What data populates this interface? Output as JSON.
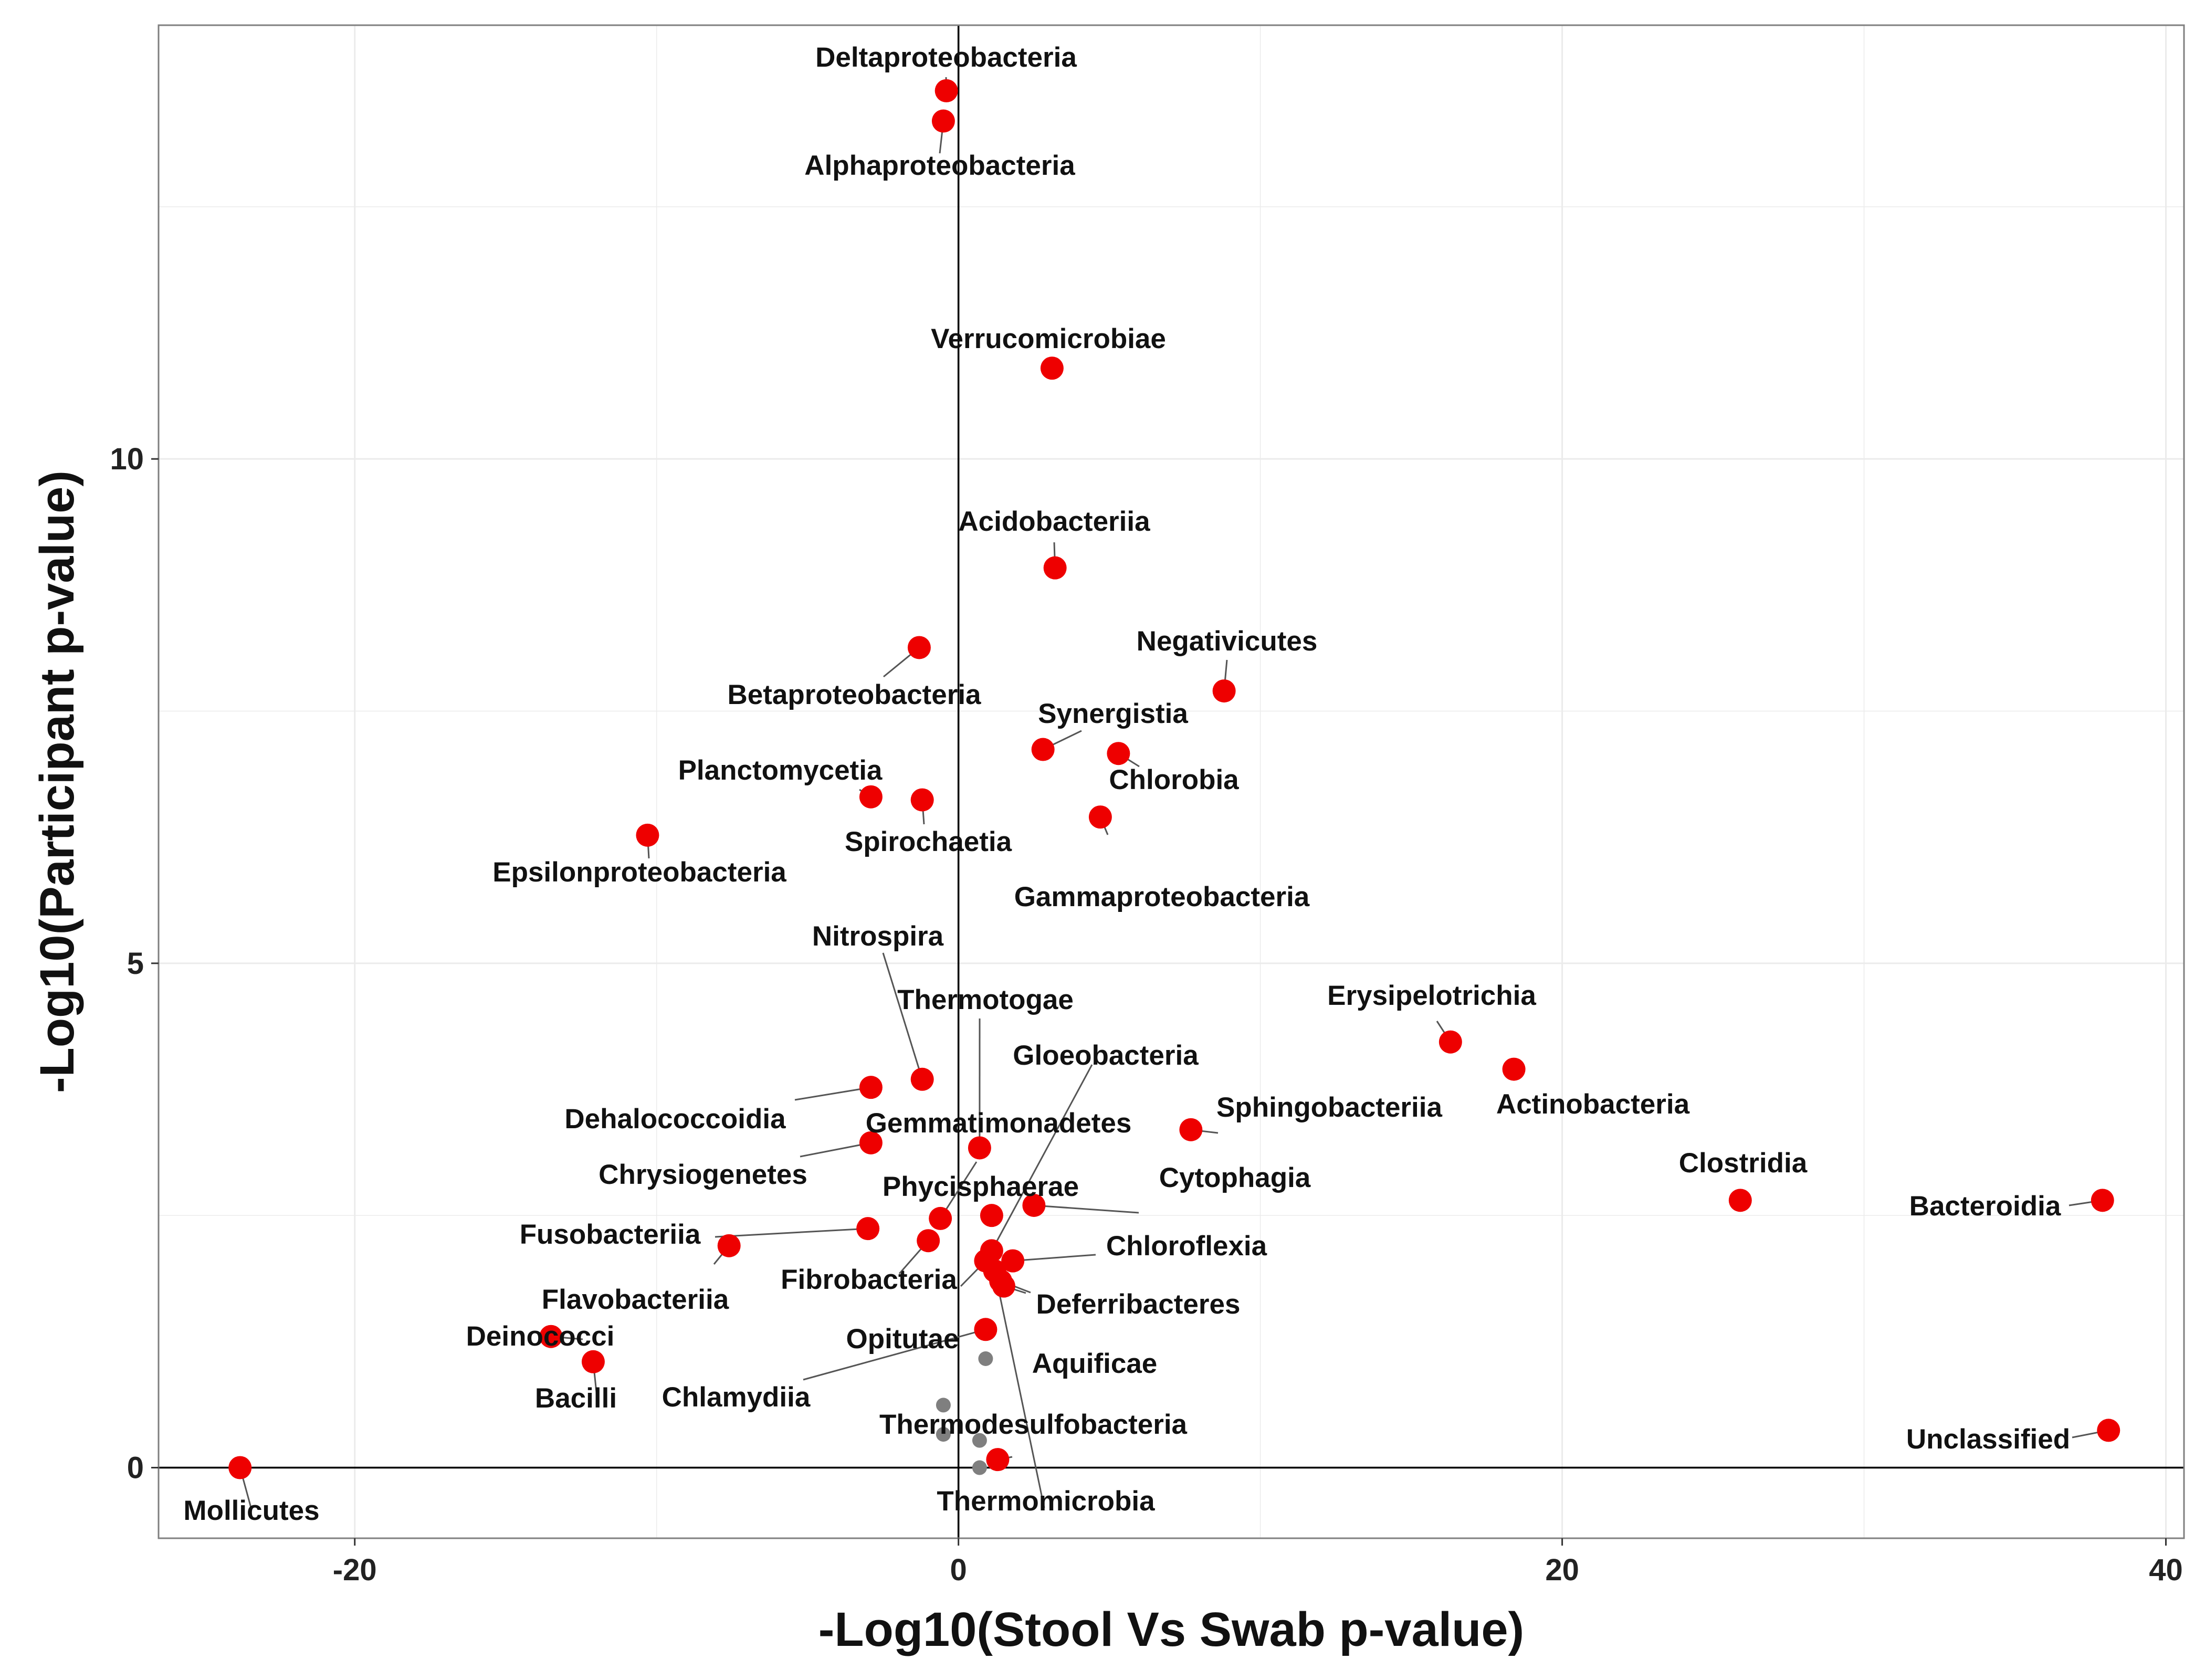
{
  "chart_data": {
    "type": "scatter",
    "xlabel": "-Log10(Stool Vs Swab p-value)",
    "ylabel": "-Log10(Participant p-value)",
    "xlim": [
      -26.5,
      40.6
    ],
    "ylim": [
      -0.7,
      14.3
    ],
    "x_ticks": [
      -20,
      0,
      20,
      40
    ],
    "y_ticks": [
      0,
      5,
      10
    ],
    "grid": true,
    "colors": {
      "significant": "#ee0000",
      "other": "#7f7f7f",
      "axis_lines": "#000000",
      "grid": "#ebebeb",
      "panel_border": "#7f7f7f"
    },
    "points": [
      {
        "name": "Deltaproteobacteria",
        "x": -0.4,
        "y": 13.65,
        "sig": true
      },
      {
        "name": "Alphaproteobacteria",
        "x": -0.5,
        "y": 13.35,
        "sig": true
      },
      {
        "name": "Verrucomicrobiae",
        "x": 3.1,
        "y": 10.9,
        "sig": true
      },
      {
        "name": "Acidobacteriia",
        "x": 3.2,
        "y": 8.92,
        "sig": true
      },
      {
        "name": "Betaproteobacteria",
        "x": -1.3,
        "y": 8.13,
        "sig": true
      },
      {
        "name": "Negativicutes",
        "x": 8.8,
        "y": 7.7,
        "sig": true
      },
      {
        "name": "Synergistia",
        "x": 2.8,
        "y": 7.12,
        "sig": true
      },
      {
        "name": "Chlorobia",
        "x": 5.3,
        "y": 7.08,
        "sig": true
      },
      {
        "name": "Planctomycetia",
        "x": -2.9,
        "y": 6.65,
        "sig": true
      },
      {
        "name": "Spirochaetia",
        "x": -1.2,
        "y": 6.62,
        "sig": true
      },
      {
        "name": "Gammaproteobacteria",
        "x": 4.7,
        "y": 6.45,
        "sig": true
      },
      {
        "name": "Epsilonproteobacteria",
        "x": -10.3,
        "y": 6.27,
        "sig": true
      },
      {
        "name": "Nitrospira",
        "x": -1.2,
        "y": 3.85,
        "sig": true
      },
      {
        "name": "Dehalococcoidia",
        "x": -2.9,
        "y": 3.77,
        "sig": true
      },
      {
        "name": "Chrysiogenetes",
        "x": -2.9,
        "y": 3.22,
        "sig": true
      },
      {
        "name": "Thermotogae",
        "x": 0.7,
        "y": 3.17,
        "sig": true
      },
      {
        "name": "Erysipelotrichia",
        "x": 16.3,
        "y": 4.22,
        "sig": true
      },
      {
        "name": "Actinobacteria",
        "x": 18.4,
        "y": 3.95,
        "sig": true
      },
      {
        "name": "Sphingobacteriia",
        "x": 7.7,
        "y": 3.35,
        "sig": true
      },
      {
        "name": "Clostridia",
        "x": 25.9,
        "y": 2.65,
        "sig": true
      },
      {
        "name": "Bacteroidia",
        "x": 37.9,
        "y": 2.65,
        "sig": true
      },
      {
        "name": "Cytophagia",
        "x": 2.5,
        "y": 2.6,
        "sig": true
      },
      {
        "name": "Gemmatimonadetes",
        "x": -0.6,
        "y": 2.47,
        "sig": true
      },
      {
        "name": "Phycisphaerae",
        "x": 1.1,
        "y": 2.5,
        "sig": true
      },
      {
        "name": "Fusobacteriia",
        "x": -3.0,
        "y": 2.37,
        "sig": true
      },
      {
        "name": "Flavobacteriia",
        "x": -7.6,
        "y": 2.2,
        "sig": true
      },
      {
        "name": "Fibrobacteria",
        "x": -1.0,
        "y": 2.25,
        "sig": true
      },
      {
        "name": "Gloeobacteria",
        "x": 1.1,
        "y": 2.15,
        "sig": true
      },
      {
        "name": "Chloroflexia",
        "x": 1.8,
        "y": 2.05,
        "sig": true
      },
      {
        "name": "Opitutae",
        "x": 0.9,
        "y": 2.05,
        "sig": true
      },
      {
        "name": "Deferribacteres",
        "x": 1.4,
        "y": 1.85,
        "sig": true
      },
      {
        "name": "Aquificae",
        "x": 1.5,
        "y": 1.8,
        "sig": true
      },
      {
        "name": "Thermomicrobia",
        "x": 1.2,
        "y": 1.95,
        "sig": true
      },
      {
        "name": "Chlamydiia",
        "x": 0.9,
        "y": 1.37,
        "sig": true
      },
      {
        "name": "Deinococci",
        "x": -13.5,
        "y": 1.3,
        "sig": true
      },
      {
        "name": "Bacilli",
        "x": -12.1,
        "y": 1.05,
        "sig": true
      },
      {
        "name": "Thermodesulfobacteria",
        "x": 1.3,
        "y": 0.08,
        "sig": true
      },
      {
        "name": "Unclassified",
        "x": 38.1,
        "y": 0.37,
        "sig": true
      },
      {
        "name": "Mollicutes",
        "x": -23.8,
        "y": 0.0,
        "sig": true
      },
      {
        "name": "",
        "x": 0.9,
        "y": 1.08,
        "sig": false
      },
      {
        "name": "",
        "x": -0.5,
        "y": 0.62,
        "sig": false
      },
      {
        "name": "",
        "x": -0.5,
        "y": 0.33,
        "sig": false
      },
      {
        "name": "",
        "x": 0.7,
        "y": 0.27,
        "sig": false
      },
      {
        "name": "",
        "x": 0.7,
        "y": 0.0,
        "sig": false
      }
    ]
  }
}
